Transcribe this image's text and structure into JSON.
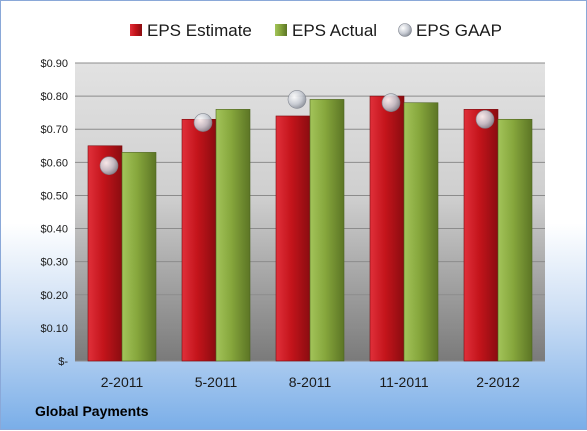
{
  "chart_data": {
    "type": "bar",
    "categories": [
      "2-2011",
      "5-2011",
      "8-2011",
      "11-2011",
      "2-2012"
    ],
    "series": [
      {
        "name": "EPS Estimate",
        "values": [
          0.65,
          0.73,
          0.74,
          0.8,
          0.76
        ],
        "color": "#c4141b",
        "mark": "bar"
      },
      {
        "name": "EPS Actual",
        "values": [
          0.63,
          0.76,
          0.79,
          0.78,
          0.73
        ],
        "color": "#86a63c",
        "mark": "bar"
      },
      {
        "name": "EPS GAAP",
        "values": [
          0.59,
          0.72,
          0.79,
          0.78,
          0.73
        ],
        "color": "#c8ccd4",
        "mark": "circle"
      }
    ],
    "ylim": [
      0,
      0.9
    ],
    "yticks": [
      0,
      0.1,
      0.2,
      0.3,
      0.4,
      0.5,
      0.6,
      0.7,
      0.8,
      0.9
    ],
    "ytick_labels": [
      "$-",
      "$0.10",
      "$0.20",
      "$0.30",
      "$0.40",
      "$0.50",
      "$0.60",
      "$0.70",
      "$0.80",
      "$0.90"
    ],
    "legend_position": "top",
    "grid": true
  },
  "footer": {
    "company": "Global Payments"
  }
}
